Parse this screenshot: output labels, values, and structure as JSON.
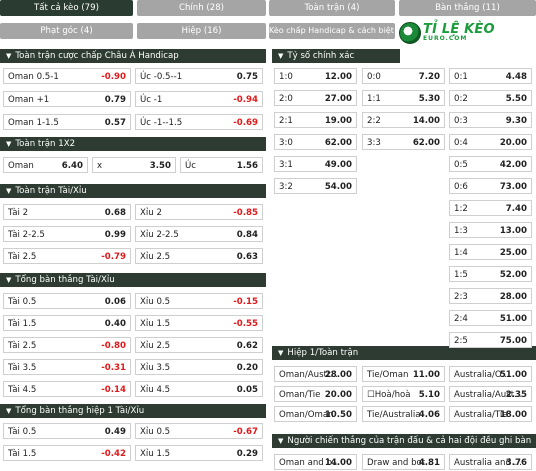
{
  "tabs": [
    {
      "label": "Tất cả kèo (79)",
      "active": true
    },
    {
      "label": "Chính (28)",
      "active": false
    },
    {
      "label": "Toàn trận (4)",
      "active": false
    },
    {
      "label": "Bàn thắng (11)",
      "active": false
    },
    {
      "label": "Phạt góc (4)",
      "active": false
    },
    {
      "label": "Hiệp (16)",
      "active": false
    },
    {
      "label": "Kèo chấp Handicap & cách biệt (3)",
      "active": false
    }
  ],
  "logo": {
    "main": "TỈ LỆ KÈO",
    "sub": "EURO.COM"
  },
  "colors": {
    "header_bg": "#2d3b32",
    "tab_bg": "#a5a5a5",
    "tab_active_bg": "#2a3b31",
    "negative": "#e0191b"
  },
  "asian_handicap": {
    "title": "Toàn trận cược chấp Châu Á Handicap",
    "rows": [
      [
        {
          "label": "Oman 0.5-1",
          "value": "-0.90",
          "neg": true
        },
        {
          "label": "Úc -0.5--1",
          "value": "0.75",
          "neg": false
        }
      ],
      [
        {
          "label": "Oman +1",
          "value": "0.79",
          "neg": false
        },
        {
          "label": "Úc -1",
          "value": "-0.94",
          "neg": true
        }
      ],
      [
        {
          "label": "Oman 1-1.5",
          "value": "0.57",
          "neg": false
        },
        {
          "label": "Úc -1--1.5",
          "value": "-0.69",
          "neg": true
        }
      ]
    ]
  },
  "full_1x2": {
    "title": "Toàn trận 1X2",
    "cells": [
      {
        "label": "Oman",
        "value": "6.40"
      },
      {
        "label": "x",
        "value": "3.50"
      },
      {
        "label": "Úc",
        "value": "1.56"
      }
    ]
  },
  "over_under": {
    "title": "Toàn trận Tài/Xỉu",
    "rows": [
      [
        {
          "label": "Tài 2",
          "value": "0.68",
          "neg": false
        },
        {
          "label": "Xỉu 2",
          "value": "-0.85",
          "neg": true
        }
      ],
      [
        {
          "label": "Tài 2-2.5",
          "value": "0.99",
          "neg": false
        },
        {
          "label": "Xỉu 2-2.5",
          "value": "0.84",
          "neg": false
        }
      ],
      [
        {
          "label": "Tài 2.5",
          "value": "-0.79",
          "neg": true
        },
        {
          "label": "Xỉu 2.5",
          "value": "0.63",
          "neg": false
        }
      ]
    ]
  },
  "total_goals": {
    "title": "Tổng bàn thắng Tài/Xỉu",
    "rows": [
      [
        {
          "label": "Tài 0.5",
          "value": "0.06",
          "neg": false
        },
        {
          "label": "Xỉu 0.5",
          "value": "-0.15",
          "neg": true
        }
      ],
      [
        {
          "label": "Tài 1.5",
          "value": "0.40",
          "neg": false
        },
        {
          "label": "Xỉu 1.5",
          "value": "-0.55",
          "neg": true
        }
      ],
      [
        {
          "label": "Tài 2.5",
          "value": "-0.80",
          "neg": true
        },
        {
          "label": "Xỉu 2.5",
          "value": "0.62",
          "neg": false
        }
      ],
      [
        {
          "label": "Tài 3.5",
          "value": "-0.31",
          "neg": true
        },
        {
          "label": "Xỉu 3.5",
          "value": "0.20",
          "neg": false
        }
      ],
      [
        {
          "label": "Tài 4.5",
          "value": "-0.14",
          "neg": true
        },
        {
          "label": "Xỉu 4.5",
          "value": "0.05",
          "neg": false
        }
      ]
    ]
  },
  "first_half_total": {
    "title": "Tổng bàn thắng hiệp 1 Tài/Xỉu",
    "rows": [
      [
        {
          "label": "Tài 0.5",
          "value": "0.49",
          "neg": false
        },
        {
          "label": "Xỉu 0.5",
          "value": "-0.67",
          "neg": true
        }
      ],
      [
        {
          "label": "Tài 1.5",
          "value": "-0.42",
          "neg": true
        },
        {
          "label": "Xỉu 1.5",
          "value": "0.29",
          "neg": false
        }
      ]
    ]
  },
  "correct_score": {
    "title": "Tỷ số chính xác",
    "rows": [
      [
        {
          "label": "1:0",
          "value": "12.00"
        },
        {
          "label": "0:0",
          "value": "7.20"
        },
        {
          "label": "0:1",
          "value": "4.48"
        }
      ],
      [
        {
          "label": "2:0",
          "value": "27.00"
        },
        {
          "label": "1:1",
          "value": "5.30"
        },
        {
          "label": "0:2",
          "value": "5.50"
        }
      ],
      [
        {
          "label": "2:1",
          "value": "19.00"
        },
        {
          "label": "2:2",
          "value": "14.00"
        },
        {
          "label": "0:3",
          "value": "9.30"
        }
      ],
      [
        {
          "label": "3:0",
          "value": "62.00"
        },
        {
          "label": "3:3",
          "value": "62.00"
        },
        {
          "label": "0:4",
          "value": "20.00"
        }
      ],
      [
        {
          "label": "3:1",
          "value": "49.00"
        },
        null,
        {
          "label": "0:5",
          "value": "42.00"
        }
      ],
      [
        {
          "label": "3:2",
          "value": "54.00"
        },
        null,
        {
          "label": "0:6",
          "value": "73.00"
        }
      ],
      [
        null,
        null,
        {
          "label": "1:2",
          "value": "7.40"
        }
      ],
      [
        null,
        null,
        {
          "label": "1:3",
          "value": "13.00"
        }
      ],
      [
        null,
        null,
        {
          "label": "1:4",
          "value": "25.00"
        }
      ],
      [
        null,
        null,
        {
          "label": "1:5",
          "value": "52.00"
        }
      ],
      [
        null,
        null,
        {
          "label": "2:3",
          "value": "28.00"
        }
      ],
      [
        null,
        null,
        {
          "label": "2:4",
          "value": "51.00"
        }
      ],
      [
        null,
        null,
        {
          "label": "2:5",
          "value": "75.00"
        }
      ]
    ]
  },
  "ht_ft": {
    "title": "Hiệp 1/Toàn trận",
    "rows": [
      [
        {
          "label": "Oman/Austr...",
          "value": "28.00"
        },
        {
          "label": "Tie/Oman",
          "value": "11.00"
        },
        {
          "label": "Australia/O...",
          "value": "51.00"
        }
      ],
      [
        {
          "label": "Oman/Tie",
          "value": "20.00"
        },
        {
          "label": "☐Hoà/hoà",
          "value": "5.10"
        },
        {
          "label": "Australia/Aust...",
          "value": "2.35"
        }
      ],
      [
        {
          "label": "Oman/Oman",
          "value": "10.50"
        },
        {
          "label": "Tie/Australia",
          "value": "4.06"
        },
        {
          "label": "Australia/Tie",
          "value": "18.00"
        }
      ]
    ]
  },
  "winner_btts": {
    "title": "Người chiến thắng của trận đấu & cả hai đội đều ghi bàn",
    "rows": [
      [
        {
          "label": "Oman and b...",
          "value": "14.00"
        },
        {
          "label": "Draw and bot...",
          "value": "4.81"
        },
        {
          "label": "Australia and ...",
          "value": "3.76"
        }
      ]
    ]
  }
}
